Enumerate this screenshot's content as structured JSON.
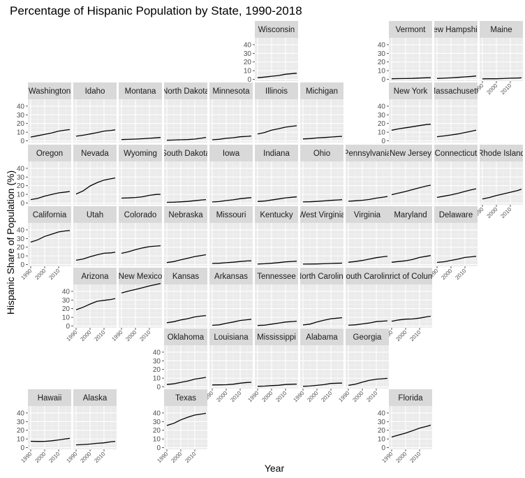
{
  "chart_data": {
    "type": "line",
    "title": "Percentage of Hispanic Population by State, 1990-2018",
    "xlabel": "Year",
    "ylabel": "Hispanic Share of Population (%)",
    "xlim": [
      1988,
      2019
    ],
    "ylim": [
      -2,
      48
    ],
    "x_ticks": [
      "1990",
      "2000",
      "2010"
    ],
    "y_ticks": [
      "0",
      "10",
      "20",
      "30",
      "40"
    ],
    "x": [
      1990,
      1995,
      2000,
      2005,
      2010,
      2015,
      2018
    ],
    "facet_layout": "geographic-grid",
    "panels": [
      {
        "name": "Wisconsin",
        "row": 0,
        "col": 5,
        "values": [
          1.9,
          2.6,
          3.6,
          4.4,
          5.9,
          6.6,
          7.0
        ]
      },
      {
        "name": "Vermont",
        "row": 0,
        "col": 8,
        "values": [
          0.7,
          0.8,
          0.9,
          1.1,
          1.5,
          1.8,
          1.9
        ]
      },
      {
        "name": "New Hampshire",
        "row": 0,
        "col": 9,
        "values": [
          1.0,
          1.3,
          1.7,
          2.3,
          2.8,
          3.4,
          3.9
        ]
      },
      {
        "name": "Maine",
        "row": 0,
        "col": 10,
        "values": [
          0.6,
          0.7,
          0.7,
          0.9,
          1.3,
          1.5,
          1.7
        ]
      },
      {
        "name": "Washington",
        "row": 1,
        "col": 0,
        "values": [
          4.4,
          5.9,
          7.5,
          9.1,
          11.2,
          12.4,
          13.0
        ]
      },
      {
        "name": "Idaho",
        "row": 1,
        "col": 1,
        "values": [
          5.3,
          6.5,
          7.9,
          9.5,
          11.2,
          12.0,
          12.7
        ]
      },
      {
        "name": "Montana",
        "row": 1,
        "col": 2,
        "values": [
          1.5,
          1.7,
          2.0,
          2.4,
          2.9,
          3.5,
          3.9
        ]
      },
      {
        "name": "North Dakota",
        "row": 1,
        "col": 3,
        "values": [
          0.7,
          0.9,
          1.2,
          1.5,
          2.0,
          3.2,
          4.0
        ]
      },
      {
        "name": "Minnesota",
        "row": 1,
        "col": 4,
        "values": [
          1.2,
          1.8,
          2.9,
          3.6,
          4.7,
          5.2,
          5.6
        ]
      },
      {
        "name": "Illinois",
        "row": 1,
        "col": 5,
        "values": [
          7.9,
          9.6,
          12.3,
          14.0,
          15.8,
          16.9,
          17.4
        ]
      },
      {
        "name": "Michigan",
        "row": 1,
        "col": 6,
        "values": [
          2.2,
          2.6,
          3.3,
          3.8,
          4.4,
          4.9,
          5.2
        ]
      },
      {
        "name": "New York",
        "row": 1,
        "col": 8,
        "values": [
          12.3,
          13.8,
          15.1,
          16.3,
          17.6,
          18.8,
          19.2
        ]
      },
      {
        "name": "Massachusetts",
        "row": 1,
        "col": 9,
        "values": [
          4.8,
          5.7,
          6.8,
          7.9,
          9.6,
          11.2,
          12.3
        ]
      },
      {
        "name": "Oregon",
        "row": 2,
        "col": 0,
        "values": [
          4.0,
          5.3,
          8.0,
          9.9,
          11.7,
          12.7,
          13.3
        ]
      },
      {
        "name": "Nevada",
        "row": 2,
        "col": 1,
        "values": [
          10.4,
          14.0,
          19.7,
          23.5,
          26.5,
          28.1,
          29.0
        ]
      },
      {
        "name": "Wyoming",
        "row": 2,
        "col": 2,
        "values": [
          5.7,
          5.9,
          6.4,
          7.2,
          8.9,
          9.9,
          10.0
        ]
      },
      {
        "name": "South Dakota",
        "row": 2,
        "col": 3,
        "values": [
          0.8,
          1.0,
          1.4,
          1.9,
          2.7,
          3.6,
          4.0
        ]
      },
      {
        "name": "Iowa",
        "row": 2,
        "col": 4,
        "values": [
          1.2,
          1.7,
          2.8,
          3.7,
          5.0,
          5.8,
          6.2
        ]
      },
      {
        "name": "Indiana",
        "row": 2,
        "col": 5,
        "values": [
          1.8,
          2.3,
          3.5,
          4.7,
          6.0,
          6.7,
          7.1
        ]
      },
      {
        "name": "Ohio",
        "row": 2,
        "col": 6,
        "values": [
          1.3,
          1.5,
          1.9,
          2.4,
          3.1,
          3.6,
          3.9
        ]
      },
      {
        "name": "Pennsylvania",
        "row": 2,
        "col": 7,
        "values": [
          2.0,
          2.6,
          3.2,
          4.1,
          5.7,
          6.8,
          7.6
        ]
      },
      {
        "name": "New Jersey",
        "row": 2,
        "col": 8,
        "values": [
          9.6,
          11.5,
          13.3,
          15.6,
          17.7,
          19.7,
          20.6
        ]
      },
      {
        "name": "Connecticut",
        "row": 2,
        "col": 9,
        "values": [
          6.5,
          7.9,
          9.4,
          11.2,
          13.4,
          15.4,
          16.5
        ]
      },
      {
        "name": "Rhode Island",
        "row": 2,
        "col": 10,
        "values": [
          4.6,
          6.4,
          8.7,
          10.5,
          12.4,
          14.4,
          15.9
        ]
      },
      {
        "name": "California",
        "row": 3,
        "col": 0,
        "values": [
          25.8,
          28.5,
          32.4,
          35.0,
          37.6,
          38.8,
          39.3
        ]
      },
      {
        "name": "Utah",
        "row": 3,
        "col": 1,
        "values": [
          4.9,
          6.4,
          9.0,
          11.2,
          13.0,
          13.5,
          14.2
        ]
      },
      {
        "name": "Colorado",
        "row": 3,
        "col": 2,
        "values": [
          12.9,
          14.8,
          17.1,
          19.1,
          20.7,
          21.3,
          21.7
        ]
      },
      {
        "name": "Nebraska",
        "row": 3,
        "col": 3,
        "values": [
          2.3,
          3.4,
          5.5,
          7.3,
          9.2,
          10.5,
          11.3
        ]
      },
      {
        "name": "Missouri",
        "row": 3,
        "col": 4,
        "values": [
          1.2,
          1.5,
          2.1,
          2.7,
          3.5,
          4.1,
          4.3
        ]
      },
      {
        "name": "Kentucky",
        "row": 3,
        "col": 5,
        "values": [
          0.6,
          0.9,
          1.5,
          2.2,
          3.1,
          3.6,
          3.9
        ]
      },
      {
        "name": "West Virginia",
        "row": 3,
        "col": 6,
        "values": [
          0.5,
          0.6,
          0.7,
          0.9,
          1.2,
          1.5,
          1.6
        ]
      },
      {
        "name": "Virginia",
        "row": 3,
        "col": 7,
        "values": [
          2.6,
          3.5,
          4.7,
          6.3,
          7.9,
          9.0,
          9.6
        ]
      },
      {
        "name": "Maryland",
        "row": 3,
        "col": 8,
        "values": [
          2.6,
          3.5,
          4.3,
          5.9,
          8.2,
          9.5,
          10.4
        ]
      },
      {
        "name": "Delaware",
        "row": 3,
        "col": 9,
        "values": [
          2.4,
          3.2,
          4.8,
          6.2,
          8.2,
          9.0,
          9.5
        ]
      },
      {
        "name": "Arizona",
        "row": 4,
        "col": 1,
        "values": [
          18.8,
          21.6,
          25.3,
          28.6,
          29.6,
          30.7,
          31.6
        ]
      },
      {
        "name": "New Mexico",
        "row": 4,
        "col": 2,
        "values": [
          38.2,
          40.3,
          42.1,
          44.1,
          46.3,
          48.0,
          49.1
        ]
      },
      {
        "name": "Kansas",
        "row": 4,
        "col": 3,
        "values": [
          3.8,
          5.0,
          7.0,
          8.5,
          10.5,
          11.6,
          12.0
        ]
      },
      {
        "name": "Arkansas",
        "row": 4,
        "col": 4,
        "values": [
          0.8,
          1.4,
          3.2,
          4.6,
          6.4,
          7.3,
          7.8
        ]
      },
      {
        "name": "Tennessee",
        "row": 4,
        "col": 5,
        "values": [
          0.7,
          1.0,
          2.2,
          3.3,
          4.6,
          5.2,
          5.6
        ]
      },
      {
        "name": "North Carolina",
        "row": 4,
        "col": 6,
        "values": [
          1.2,
          2.2,
          4.7,
          6.6,
          8.4,
          9.1,
          9.6
        ]
      },
      {
        "name": "South Carolina",
        "row": 4,
        "col": 7,
        "values": [
          0.9,
          1.4,
          2.4,
          3.5,
          5.1,
          5.7,
          6.0
        ]
      },
      {
        "name": "District of Columbia",
        "row": 4,
        "col": 8,
        "values": [
          5.4,
          7.0,
          7.9,
          8.2,
          9.1,
          10.6,
          11.3
        ]
      },
      {
        "name": "Oklahoma",
        "row": 5,
        "col": 3,
        "values": [
          2.7,
          3.5,
          5.2,
          6.6,
          8.9,
          10.1,
          10.9
        ]
      },
      {
        "name": "Louisiana",
        "row": 5,
        "col": 4,
        "values": [
          2.2,
          2.3,
          2.4,
          3.0,
          4.2,
          5.0,
          5.2
        ]
      },
      {
        "name": "Mississippi",
        "row": 5,
        "col": 5,
        "values": [
          0.6,
          0.8,
          1.4,
          1.8,
          2.7,
          3.0,
          3.2
        ]
      },
      {
        "name": "Alabama",
        "row": 5,
        "col": 6,
        "values": [
          0.6,
          0.9,
          1.7,
          2.5,
          3.9,
          4.2,
          4.3
        ]
      },
      {
        "name": "Georgia",
        "row": 5,
        "col": 7,
        "values": [
          1.7,
          3.0,
          5.3,
          7.5,
          8.8,
          9.4,
          9.8
        ]
      },
      {
        "name": "Hawaii",
        "row": 6,
        "col": 0,
        "values": [
          7.3,
          7.1,
          7.2,
          7.8,
          8.9,
          10.1,
          10.7
        ]
      },
      {
        "name": "Alaska",
        "row": 6,
        "col": 1,
        "values": [
          3.2,
          3.6,
          4.1,
          4.9,
          5.5,
          6.8,
          7.2
        ]
      },
      {
        "name": "Texas",
        "row": 6,
        "col": 3,
        "values": [
          25.5,
          28.1,
          32.0,
          35.1,
          37.6,
          38.8,
          39.6
        ]
      },
      {
        "name": "Florida",
        "row": 6,
        "col": 8,
        "values": [
          12.2,
          14.5,
          16.8,
          19.5,
          22.5,
          24.5,
          25.9
        ]
      }
    ]
  }
}
